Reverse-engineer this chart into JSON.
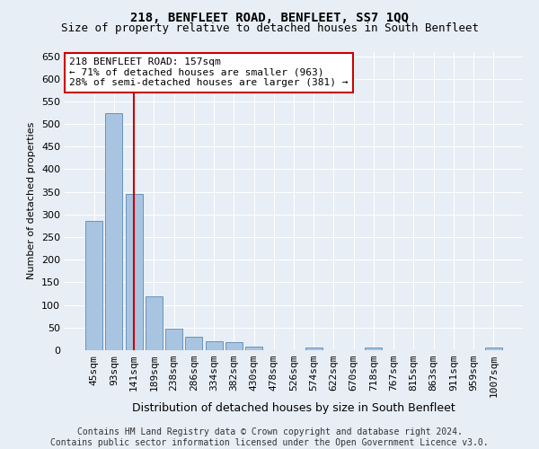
{
  "title": "218, BENFLEET ROAD, BENFLEET, SS7 1QQ",
  "subtitle": "Size of property relative to detached houses in South Benfleet",
  "xlabel": "Distribution of detached houses by size in South Benfleet",
  "ylabel": "Number of detached properties",
  "categories": [
    "45sqm",
    "93sqm",
    "141sqm",
    "189sqm",
    "238sqm",
    "286sqm",
    "334sqm",
    "382sqm",
    "430sqm",
    "478sqm",
    "526sqm",
    "574sqm",
    "622sqm",
    "670sqm",
    "718sqm",
    "767sqm",
    "815sqm",
    "863sqm",
    "911sqm",
    "959sqm",
    "1007sqm"
  ],
  "values": [
    285,
    525,
    345,
    120,
    48,
    30,
    20,
    18,
    7,
    0,
    0,
    5,
    0,
    0,
    5,
    0,
    0,
    0,
    0,
    0,
    5
  ],
  "bar_color": "#a8c4e0",
  "bar_edge_color": "#5a8ab5",
  "vline_x_index": 2,
  "vline_color": "#cc0000",
  "annotation_text": "218 BENFLEET ROAD: 157sqm\n← 71% of detached houses are smaller (963)\n28% of semi-detached houses are larger (381) →",
  "annotation_box_facecolor": "#ffffff",
  "annotation_box_edgecolor": "#cc0000",
  "ylim": [
    0,
    660
  ],
  "yticks": [
    0,
    50,
    100,
    150,
    200,
    250,
    300,
    350,
    400,
    450,
    500,
    550,
    600,
    650
  ],
  "bg_color": "#e8eef5",
  "footer_text": "Contains HM Land Registry data © Crown copyright and database right 2024.\nContains public sector information licensed under the Open Government Licence v3.0.",
  "title_fontsize": 10,
  "subtitle_fontsize": 9,
  "xlabel_fontsize": 9,
  "ylabel_fontsize": 8,
  "tick_fontsize": 8,
  "annotation_fontsize": 8,
  "footer_fontsize": 7
}
